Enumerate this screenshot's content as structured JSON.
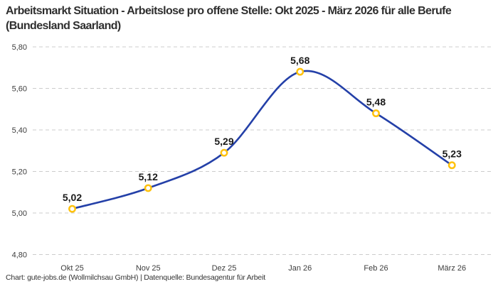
{
  "footer": {
    "credit": "Chart: gute-jobs.de (Wollmilchsau GmbH) | Datenquelle: Bundesagentur für Arbeit"
  },
  "chart_data": {
    "type": "line",
    "title": "Arbeitsmarkt Situation - Arbeitslose pro offene Stelle: Okt 2025 - März 2026 für alle Berufe (Bundesland Saarland)",
    "categories": [
      "Okt 25",
      "Nov 25",
      "Dez 25",
      "Jan 26",
      "Feb 26",
      "März 26"
    ],
    "values": [
      5.02,
      5.12,
      5.29,
      5.68,
      5.48,
      5.23
    ],
    "point_labels": [
      "5,02",
      "5,12",
      "5,29",
      "5,68",
      "5,48",
      "5,23"
    ],
    "xlabel": "",
    "ylabel": "",
    "ylim": [
      4.8,
      5.8
    ],
    "y_tick_values": [
      5.8,
      5.6,
      5.4,
      5.2,
      5.0,
      4.8
    ],
    "y_tick_labels": [
      "5,80",
      "5,60",
      "5,40",
      "5,20",
      "5,00",
      "4,80"
    ],
    "grid": "horizontal-dashed",
    "legend": "none",
    "line_color": "#2440A8",
    "marker_color": "#FFC20E",
    "marker_fill": "#ffffff",
    "grid_color": "#cccccc"
  }
}
